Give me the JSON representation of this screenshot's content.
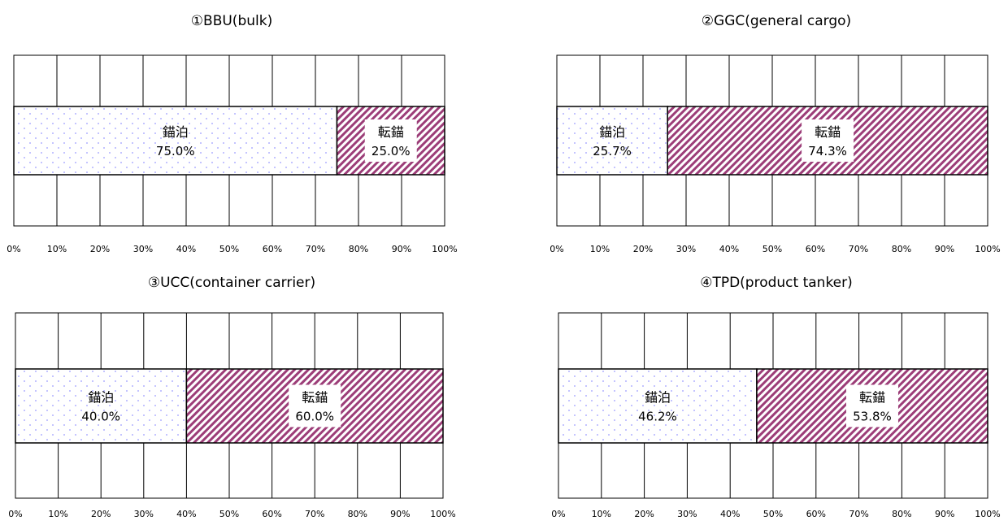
{
  "chart_data": [
    {
      "type": "bar",
      "orientation": "horizontal-stacked-percent",
      "title": "①BBU(bulk)",
      "xlim": [
        0,
        100
      ],
      "x_ticks": [
        "0%",
        "10%",
        "20%",
        "30%",
        "40%",
        "50%",
        "60%",
        "70%",
        "80%",
        "90%",
        "100%"
      ],
      "grid": true,
      "series": [
        {
          "name": "錨泊",
          "value": 75.0,
          "label": "75.0%"
        },
        {
          "name": "転錨",
          "value": 25.0,
          "label": "25.0%"
        }
      ]
    },
    {
      "type": "bar",
      "orientation": "horizontal-stacked-percent",
      "title": "②GGC(general cargo)",
      "xlim": [
        0,
        100
      ],
      "x_ticks": [
        "0%",
        "10%",
        "20%",
        "30%",
        "40%",
        "50%",
        "60%",
        "70%",
        "80%",
        "90%",
        "100%"
      ],
      "grid": true,
      "series": [
        {
          "name": "錨泊",
          "value": 25.7,
          "label": "25.7%"
        },
        {
          "name": "転錨",
          "value": 74.3,
          "label": "74.3%"
        }
      ]
    },
    {
      "type": "bar",
      "orientation": "horizontal-stacked-percent",
      "title": "③UCC(container carrier)",
      "xlim": [
        0,
        100
      ],
      "x_ticks": [
        "0%",
        "10%",
        "20%",
        "30%",
        "40%",
        "50%",
        "60%",
        "70%",
        "80%",
        "90%",
        "100%"
      ],
      "grid": true,
      "series": [
        {
          "name": "錨泊",
          "value": 40.0,
          "label": "40.0%"
        },
        {
          "name": "転錨",
          "value": 60.0,
          "label": "60.0%"
        }
      ]
    },
    {
      "type": "bar",
      "orientation": "horizontal-stacked-percent",
      "title": "④TPD(product tanker)",
      "xlim": [
        0,
        100
      ],
      "x_ticks": [
        "0%",
        "10%",
        "20%",
        "30%",
        "40%",
        "50%",
        "60%",
        "70%",
        "80%",
        "90%",
        "100%"
      ],
      "grid": true,
      "series": [
        {
          "name": "錨泊",
          "value": 46.2,
          "label": "46.2%"
        },
        {
          "name": "転錨",
          "value": 53.8,
          "label": "53.8%"
        }
      ]
    }
  ],
  "colors": {
    "anchoring_dots": "#9a9aff",
    "shift_stripe": "#9c3d78",
    "grid": "#000000"
  }
}
